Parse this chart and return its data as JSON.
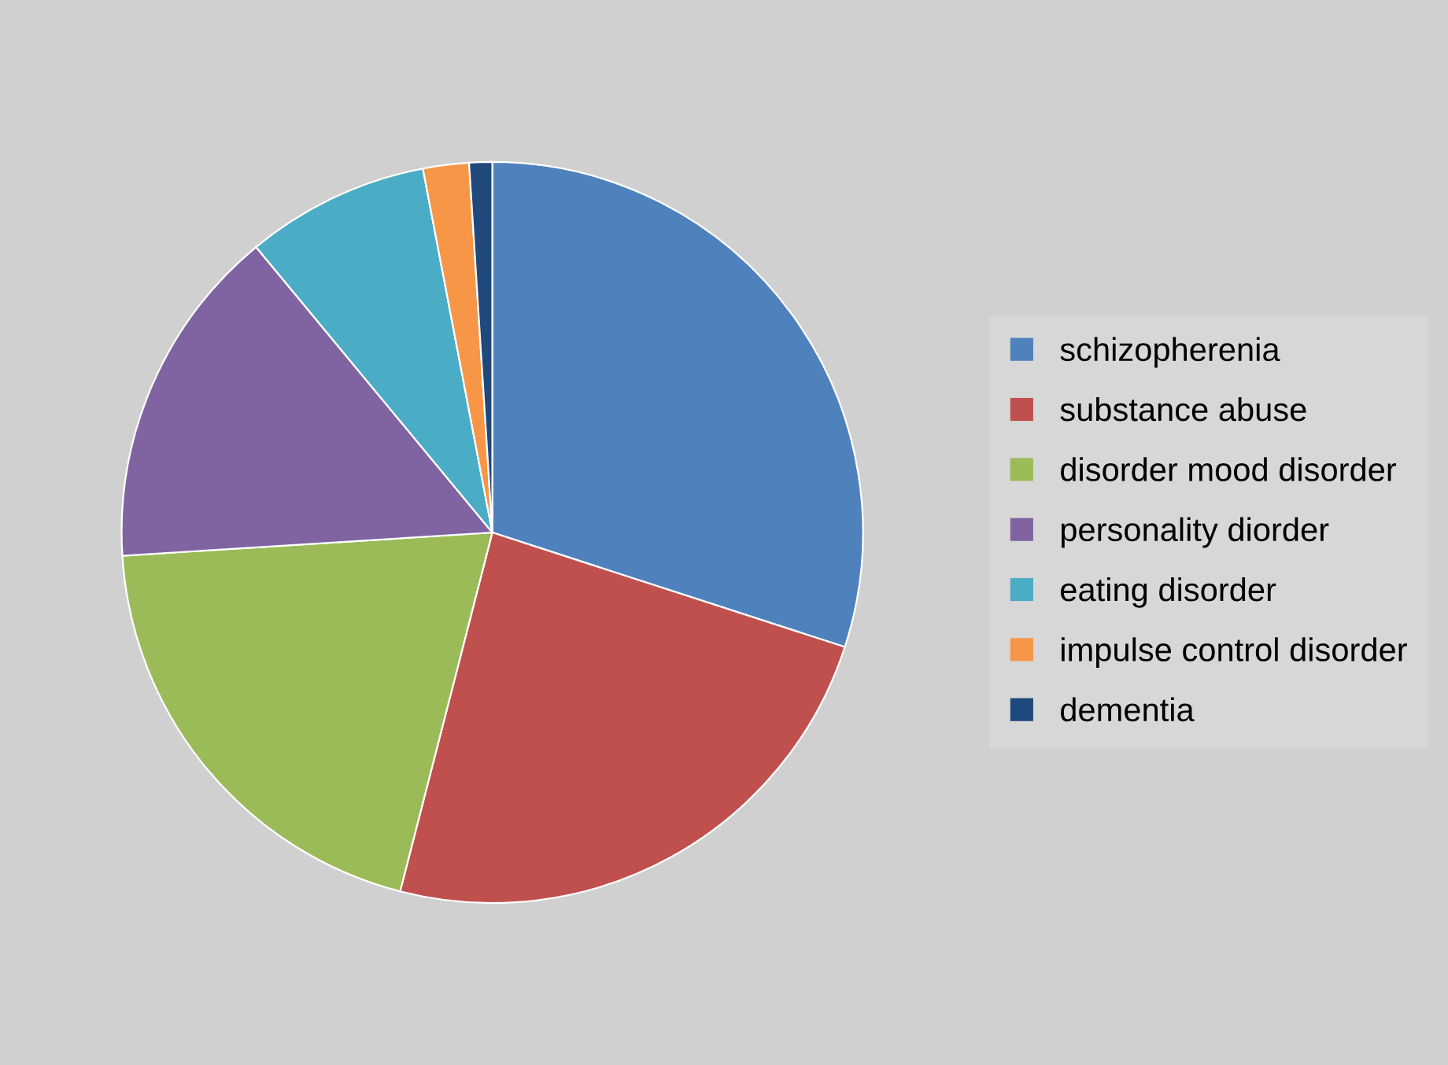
{
  "chart_data": {
    "type": "pie",
    "categories": [
      "schizopherenia",
      "substance abuse",
      "disorder mood disorder",
      "personality diorder",
      "eating disorder",
      "impulse control disorder",
      "dementia"
    ],
    "values": [
      30,
      24,
      20,
      15,
      8,
      2,
      1
    ],
    "colors": [
      "#4f81bd",
      "#c0504d",
      "#9bbb59",
      "#8064a2",
      "#4bacc6",
      "#f79646",
      "#1f497d"
    ],
    "legend": "right"
  }
}
